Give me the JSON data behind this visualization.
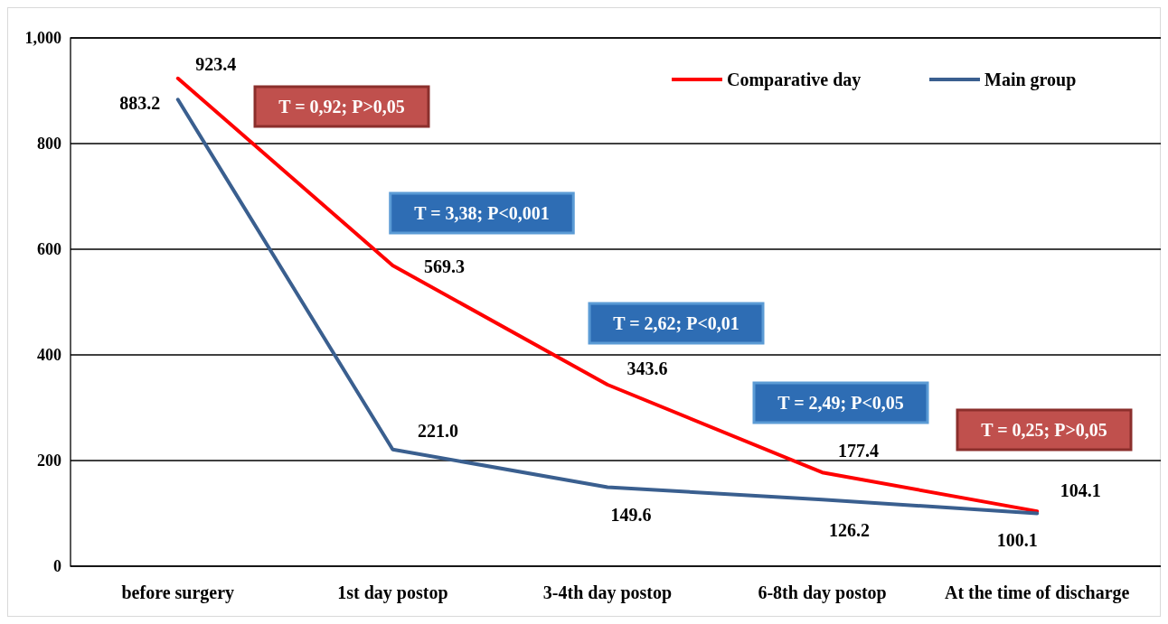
{
  "chart_data": {
    "type": "line",
    "categories": [
      "before surgery",
      "1st day postop",
      "3-4th day postop",
      "6-8th day postop",
      "At the time of discharge"
    ],
    "series": [
      {
        "name": "Comparative day",
        "color": "#ff0000",
        "values": [
          923.4,
          569.3,
          343.6,
          177.4,
          104.1
        ],
        "value_labels": [
          "923.4",
          "569.3",
          "343.6",
          "177.4",
          "104.1"
        ]
      },
      {
        "name": "Main group",
        "color": "#3a5f8f",
        "values": [
          883.2,
          221.0,
          149.6,
          126.2,
          100.1
        ],
        "value_labels": [
          "883.2",
          "221.0",
          "149.6",
          "126.2",
          "100.1"
        ]
      }
    ],
    "ylim": [
      0,
      1000
    ],
    "yticks": [
      0,
      {
        "value": 200,
        "label": "200"
      },
      {
        "value": 400,
        "label": "400"
      },
      {
        "value": 600,
        "label": "600"
      },
      {
        "value": 800,
        "label": "800"
      },
      {
        "value": 1000,
        "label": "1,000"
      }
    ],
    "grid": "y",
    "legend": "top right",
    "marker": "none",
    "line_style": "solid",
    "annotations": [
      "T = 0,92; P>0,05",
      "T = 3,38; P<0,001",
      "T = 2,62; P<0,01",
      "T = 2,49; P<0,05",
      "T = 0,25; P>0,05"
    ]
  }
}
